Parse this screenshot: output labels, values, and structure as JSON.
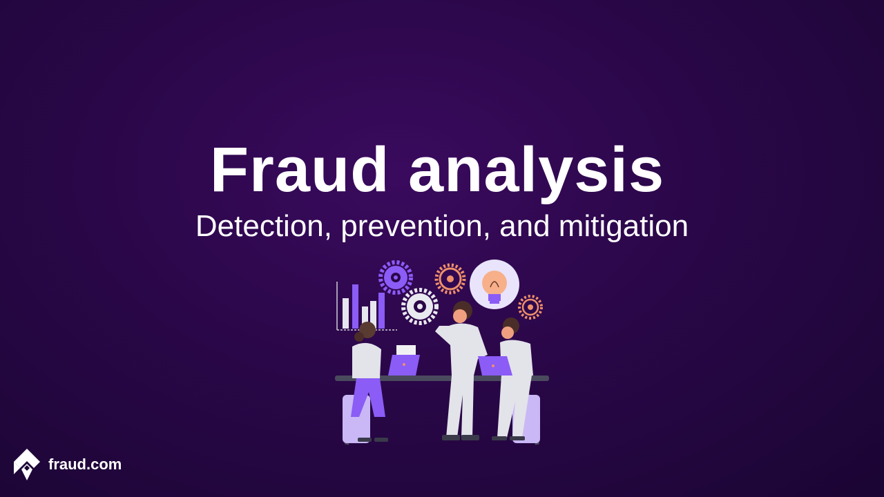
{
  "hero": {
    "title": "Fraud analysis",
    "subtitle": "Detection, prevention, and mitigation"
  },
  "brand": {
    "name": "fraud.com",
    "logo_icon": "diamond-logo-icon"
  },
  "illustration": {
    "description_icons": [
      "bar-chart-icon",
      "gear-icon",
      "lightbulb-icon",
      "laptop-icon",
      "people-icon"
    ]
  },
  "colors": {
    "background": "#2a0748",
    "text": "#ffffff",
    "accent_purple": "#8b5cf6",
    "accent_orange": "#f0906a",
    "lavender": "#c9b8f5"
  }
}
